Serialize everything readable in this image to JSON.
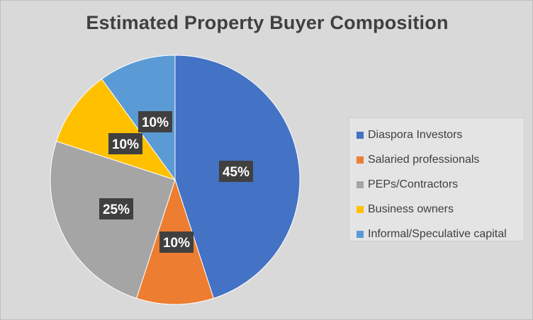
{
  "chart_data": {
    "type": "pie",
    "title": "Estimated Property Buyer Composition",
    "categories": [
      "Diaspora Investors",
      "Salaried professionals",
      "PEPs/Contractors",
      "Business owners",
      "Informal/Speculative capital"
    ],
    "values": [
      45,
      10,
      25,
      10,
      10
    ],
    "data_labels": [
      "45%",
      "10%",
      "25%",
      "10%",
      "10%"
    ],
    "colors": [
      "#4472c4",
      "#ed7d31",
      "#a5a5a5",
      "#ffc000",
      "#5b9bd5"
    ],
    "legend_position": "right",
    "start_angle": "12 o'clock",
    "direction": "clockwise"
  },
  "background_color": "#d9d9d9"
}
